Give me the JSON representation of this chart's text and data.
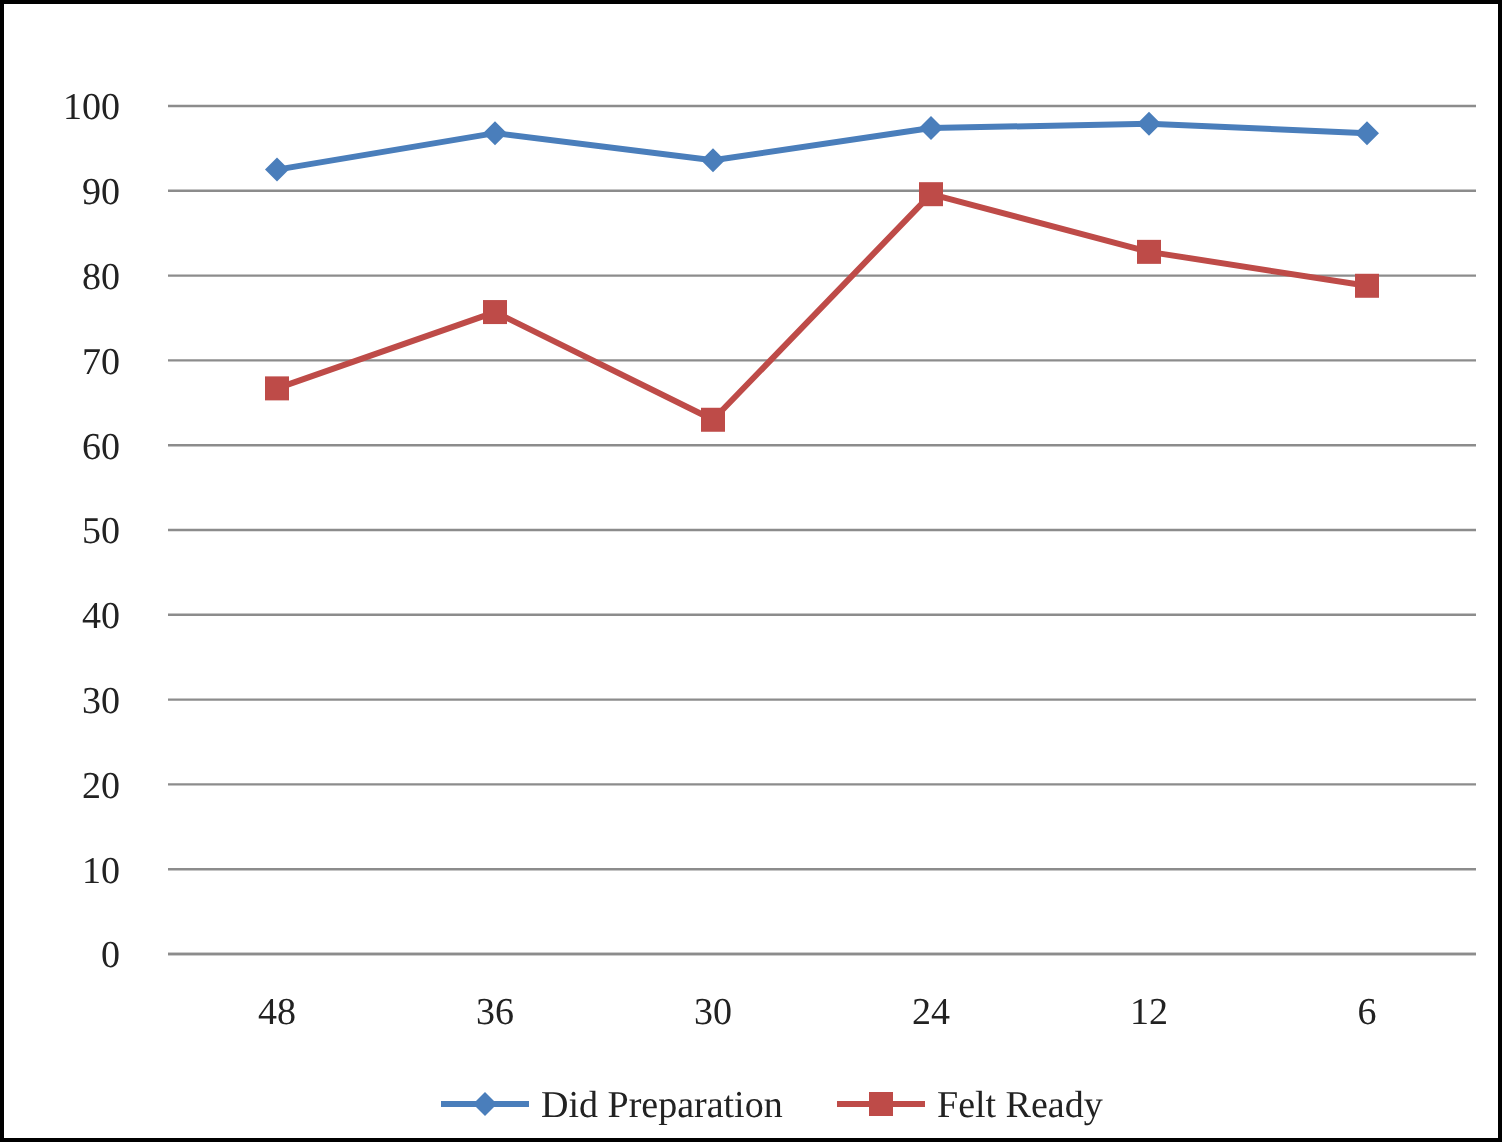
{
  "chart_data": {
    "type": "line",
    "categories": [
      "48",
      "36",
      "30",
      "24",
      "12",
      "6"
    ],
    "series": [
      {
        "name": "Did Preparation",
        "color": "#4a7ebb",
        "marker": "diamond",
        "values": [
          92.5,
          96.8,
          93.6,
          97.4,
          97.9,
          96.8
        ]
      },
      {
        "name": "Felt Ready",
        "color": "#be4b48",
        "marker": "square",
        "values": [
          66.7,
          75.7,
          63,
          89.6,
          82.8,
          78.8
        ]
      }
    ],
    "ylim": [
      0,
      100
    ],
    "yticks": [
      0,
      10,
      20,
      30,
      40,
      50,
      60,
      70,
      80,
      90,
      100
    ],
    "grid": "y",
    "legend": "bottom",
    "line_style": "solid"
  }
}
